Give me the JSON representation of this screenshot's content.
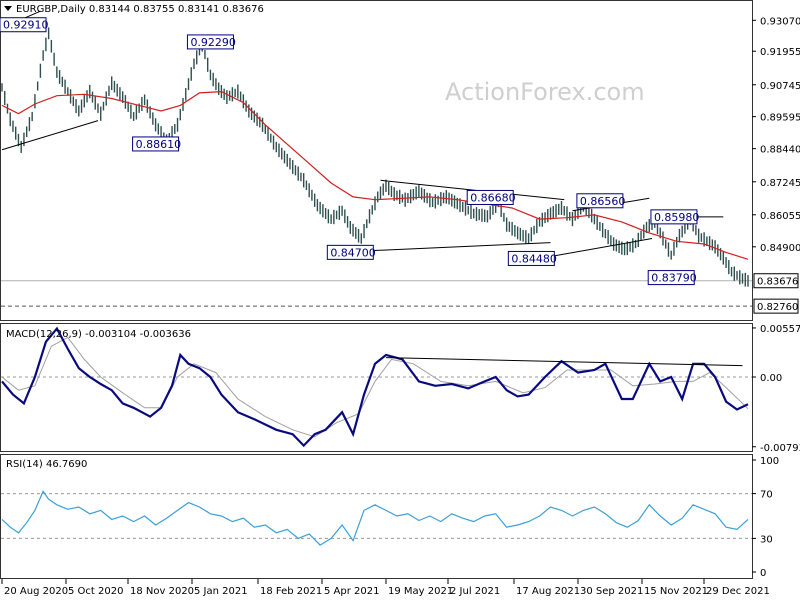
{
  "watermark": "ActionForex.com",
  "chart_data": [
    {
      "type": "candlestick",
      "header": "EURGBP,Daily  0.83144 0.83755 0.83141 0.83676",
      "ylim": [
        0.8226,
        0.9373
      ],
      "price_ticks": [
        "0.93070",
        "0.91955",
        "0.90745",
        "0.89595",
        "0.88440",
        "0.87245",
        "0.86055",
        "0.84900",
        "0.83676",
        "0.82760"
      ],
      "price_tick_values": [
        0.9307,
        0.91955,
        0.90745,
        0.89595,
        0.8844,
        0.87245,
        0.86055,
        0.849,
        0.83676,
        0.8276
      ],
      "current_price_label": "0.83676",
      "current_price": 0.83676,
      "dashed_level_label": "0.82760",
      "dashed_level": 0.8276,
      "x_labels": [
        "20 Aug 2020",
        "5 Oct 2020",
        "18 Nov 2020",
        "5 Jan 2021",
        "18 Feb 2021",
        "5 Apr 2021",
        "19 May 2021",
        "2 Jul 2021",
        "17 Aug 2021",
        "30 Sep 2021",
        "15 Nov 2021",
        "29 Dec 2021"
      ],
      "close_path": [
        [
          0,
          0.9065
        ],
        [
          3,
          0.895
        ],
        [
          7,
          0.885
        ],
        [
          11,
          0.896
        ],
        [
          15,
          0.918
        ],
        [
          17,
          0.926
        ],
        [
          20,
          0.912
        ],
        [
          24,
          0.905
        ],
        [
          28,
          0.898
        ],
        [
          32,
          0.905
        ],
        [
          36,
          0.897
        ],
        [
          40,
          0.908
        ],
        [
          44,
          0.903
        ],
        [
          48,
          0.896
        ],
        [
          52,
          0.902
        ],
        [
          56,
          0.893
        ],
        [
          60,
          0.887
        ],
        [
          64,
          0.893
        ],
        [
          67,
          0.904
        ],
        [
          70,
          0.915
        ],
        [
          73,
          0.922
        ],
        [
          76,
          0.911
        ],
        [
          79,
          0.906
        ],
        [
          82,
          0.903
        ],
        [
          86,
          0.905
        ],
        [
          90,
          0.898
        ],
        [
          95,
          0.893
        ],
        [
          100,
          0.885
        ],
        [
          105,
          0.879
        ],
        [
          110,
          0.873
        ],
        [
          115,
          0.864
        ],
        [
          120,
          0.859
        ],
        [
          124,
          0.862
        ],
        [
          127,
          0.856
        ],
        [
          131,
          0.852
        ],
        [
          134,
          0.86
        ],
        [
          137,
          0.867
        ],
        [
          140,
          0.871
        ],
        [
          143,
          0.868
        ],
        [
          147,
          0.866
        ],
        [
          152,
          0.869
        ],
        [
          157,
          0.865
        ],
        [
          162,
          0.867
        ],
        [
          167,
          0.864
        ],
        [
          172,
          0.861
        ],
        [
          177,
          0.86
        ],
        [
          181,
          0.865
        ],
        [
          184,
          0.857
        ],
        [
          188,
          0.854
        ],
        [
          192,
          0.852
        ],
        [
          196,
          0.858
        ],
        [
          200,
          0.861
        ],
        [
          204,
          0.863
        ],
        [
          208,
          0.859
        ],
        [
          212,
          0.864
        ],
        [
          216,
          0.859
        ],
        [
          219,
          0.855
        ],
        [
          223,
          0.85
        ],
        [
          227,
          0.848
        ],
        [
          231,
          0.85
        ],
        [
          235,
          0.856
        ],
        [
          238,
          0.858
        ],
        [
          241,
          0.852
        ],
        [
          244,
          0.846
        ],
        [
          247,
          0.853
        ],
        [
          251,
          0.859
        ],
        [
          254,
          0.853
        ],
        [
          257,
          0.851
        ],
        [
          260,
          0.849
        ],
        [
          263,
          0.845
        ],
        [
          266,
          0.84
        ],
        [
          269,
          0.838
        ],
        [
          272,
          0.8367
        ]
      ],
      "ma_path": [
        [
          0,
          0.9
        ],
        [
          6,
          0.897
        ],
        [
          12,
          0.9005
        ],
        [
          20,
          0.9035
        ],
        [
          30,
          0.904
        ],
        [
          40,
          0.9025
        ],
        [
          50,
          0.9
        ],
        [
          58,
          0.898
        ],
        [
          65,
          0.9
        ],
        [
          72,
          0.9045
        ],
        [
          80,
          0.905
        ],
        [
          88,
          0.901
        ],
        [
          96,
          0.893
        ],
        [
          104,
          0.886
        ],
        [
          112,
          0.879
        ],
        [
          120,
          0.872
        ],
        [
          128,
          0.867
        ],
        [
          136,
          0.866
        ],
        [
          146,
          0.8665
        ],
        [
          156,
          0.867
        ],
        [
          166,
          0.866
        ],
        [
          176,
          0.8645
        ],
        [
          186,
          0.863
        ],
        [
          196,
          0.859
        ],
        [
          206,
          0.8595
        ],
        [
          216,
          0.8605
        ],
        [
          226,
          0.858
        ],
        [
          236,
          0.854
        ],
        [
          246,
          0.851
        ],
        [
          256,
          0.85
        ],
        [
          264,
          0.847
        ],
        [
          272,
          0.8445
        ]
      ],
      "annotations": [
        {
          "label": "0.92910",
          "price": 0.9291,
          "idx": 11
        },
        {
          "label": "0.92290",
          "price": 0.9229,
          "idx": 76
        },
        {
          "label": "0.88610",
          "price": 0.8861,
          "idx": 56
        },
        {
          "label": "0.84700",
          "price": 0.847,
          "idx": 127
        },
        {
          "label": "0.86680",
          "price": 0.8668,
          "idx": 178
        },
        {
          "label": "0.84480",
          "price": 0.8448,
          "idx": 193
        },
        {
          "label": "0.86560",
          "price": 0.8656,
          "idx": 218
        },
        {
          "label": "0.83790",
          "price": 0.8379,
          "idx": 244
        },
        {
          "label": "0.85980",
          "price": 0.8598,
          "idx": 245
        }
      ],
      "trendlines": [
        [
          [
            0,
            0.928
          ],
          [
            14,
            0.934
          ]
        ],
        [
          [
            0,
            0.884
          ],
          [
            35,
            0.8945
          ]
        ],
        [
          [
            132,
            0.8475
          ],
          [
            200,
            0.8505
          ]
        ],
        [
          [
            138,
            0.873
          ],
          [
            205,
            0.866
          ]
        ],
        [
          [
            200,
            0.8455
          ],
          [
            237,
            0.852
          ]
        ],
        [
          [
            208,
            0.862
          ],
          [
            236,
            0.8665
          ]
        ],
        [
          [
            249,
            0.8598
          ],
          [
            263,
            0.8598
          ]
        ]
      ]
    },
    {
      "type": "line",
      "header": "MACD(12,26,9) -0.003104 -0.003636",
      "ylim": [
        -0.0083,
        0.0058
      ],
      "ticks": [
        "0.005579",
        "0.00",
        "-0.007931"
      ],
      "tick_values": [
        0.005579,
        0.0,
        -0.007931
      ],
      "macd_path": [
        [
          0,
          -0.0005
        ],
        [
          4,
          -0.002
        ],
        [
          8,
          -0.003
        ],
        [
          12,
          0.0
        ],
        [
          16,
          0.004
        ],
        [
          20,
          0.0055
        ],
        [
          24,
          0.0032
        ],
        [
          28,
          0.001
        ],
        [
          32,
          0.0
        ],
        [
          36,
          -0.0008
        ],
        [
          40,
          -0.0015
        ],
        [
          44,
          -0.003
        ],
        [
          48,
          -0.0035
        ],
        [
          54,
          -0.0045
        ],
        [
          58,
          -0.0035
        ],
        [
          62,
          -0.001
        ],
        [
          65,
          0.0025
        ],
        [
          68,
          0.0015
        ],
        [
          72,
          0.001
        ],
        [
          76,
          0.0
        ],
        [
          80,
          -0.002
        ],
        [
          86,
          -0.004
        ],
        [
          92,
          -0.0048
        ],
        [
          100,
          -0.006
        ],
        [
          106,
          -0.0065
        ],
        [
          110,
          -0.0078
        ],
        [
          114,
          -0.0065
        ],
        [
          118,
          -0.006
        ],
        [
          124,
          -0.004
        ],
        [
          128,
          -0.0065
        ],
        [
          132,
          -0.002
        ],
        [
          136,
          0.0015
        ],
        [
          140,
          0.0025
        ],
        [
          146,
          0.002
        ],
        [
          152,
          -0.0005
        ],
        [
          158,
          -0.001
        ],
        [
          164,
          -0.0008
        ],
        [
          170,
          -0.0013
        ],
        [
          176,
          -0.0005
        ],
        [
          180,
          0.0
        ],
        [
          184,
          -0.0015
        ],
        [
          188,
          -0.0022
        ],
        [
          192,
          -0.002
        ],
        [
          198,
          0.0
        ],
        [
          204,
          0.0018
        ],
        [
          210,
          0.0005
        ],
        [
          216,
          0.0008
        ],
        [
          220,
          0.0015
        ],
        [
          226,
          -0.0025
        ],
        [
          230,
          -0.0025
        ],
        [
          236,
          0.0015
        ],
        [
          240,
          -0.0005
        ],
        [
          244,
          0.0
        ],
        [
          248,
          -0.0025
        ],
        [
          252,
          0.0015
        ],
        [
          256,
          0.0015
        ],
        [
          260,
          0.0
        ],
        [
          264,
          -0.0028
        ],
        [
          268,
          -0.0037
        ],
        [
          272,
          -0.0031
        ]
      ],
      "signal_path": [
        [
          0,
          0.0
        ],
        [
          6,
          -0.0015
        ],
        [
          12,
          -0.001
        ],
        [
          18,
          0.0035
        ],
        [
          24,
          0.0045
        ],
        [
          30,
          0.002
        ],
        [
          36,
          0.0
        ],
        [
          44,
          -0.0018
        ],
        [
          52,
          -0.0035
        ],
        [
          58,
          -0.0035
        ],
        [
          64,
          0.0
        ],
        [
          70,
          0.0015
        ],
        [
          78,
          0.0005
        ],
        [
          86,
          -0.0025
        ],
        [
          96,
          -0.0045
        ],
        [
          106,
          -0.006
        ],
        [
          114,
          -0.0068
        ],
        [
          122,
          -0.0052
        ],
        [
          130,
          -0.0042
        ],
        [
          136,
          -0.0005
        ],
        [
          142,
          0.002
        ],
        [
          150,
          0.0015
        ],
        [
          160,
          -0.0005
        ],
        [
          170,
          -0.001
        ],
        [
          180,
          -0.0005
        ],
        [
          190,
          -0.0018
        ],
        [
          198,
          -0.0012
        ],
        [
          206,
          0.0008
        ],
        [
          214,
          0.0008
        ],
        [
          222,
          0.0008
        ],
        [
          230,
          -0.001
        ],
        [
          238,
          -0.0008
        ],
        [
          246,
          -0.0005
        ],
        [
          252,
          -0.0005
        ],
        [
          258,
          0.0005
        ],
        [
          264,
          -0.0012
        ],
        [
          272,
          -0.0036
        ]
      ],
      "trendline": [
        [
          140,
          0.0022
        ],
        [
          270,
          0.0013
        ]
      ]
    },
    {
      "type": "line",
      "header": "RSI(14) 46.7690",
      "ylim": [
        0,
        100
      ],
      "ticks": [
        "100",
        "70",
        "30",
        "0"
      ],
      "tick_values": [
        100,
        70,
        30,
        0
      ],
      "rsi_path": [
        [
          0,
          47
        ],
        [
          3,
          40
        ],
        [
          6,
          35
        ],
        [
          9,
          44
        ],
        [
          12,
          55
        ],
        [
          15,
          72
        ],
        [
          17,
          65
        ],
        [
          20,
          60
        ],
        [
          24,
          56
        ],
        [
          28,
          58
        ],
        [
          32,
          52
        ],
        [
          36,
          55
        ],
        [
          40,
          47
        ],
        [
          44,
          50
        ],
        [
          48,
          45
        ],
        [
          52,
          50
        ],
        [
          56,
          42
        ],
        [
          60,
          48
        ],
        [
          64,
          55
        ],
        [
          68,
          62
        ],
        [
          72,
          58
        ],
        [
          76,
          52
        ],
        [
          80,
          50
        ],
        [
          84,
          45
        ],
        [
          88,
          48
        ],
        [
          92,
          40
        ],
        [
          96,
          42
        ],
        [
          100,
          35
        ],
        [
          104,
          38
        ],
        [
          108,
          30
        ],
        [
          112,
          34
        ],
        [
          116,
          24
        ],
        [
          120,
          30
        ],
        [
          124,
          42
        ],
        [
          128,
          28
        ],
        [
          132,
          55
        ],
        [
          136,
          60
        ],
        [
          140,
          55
        ],
        [
          144,
          50
        ],
        [
          148,
          52
        ],
        [
          152,
          46
        ],
        [
          156,
          50
        ],
        [
          160,
          45
        ],
        [
          164,
          52
        ],
        [
          168,
          48
        ],
        [
          172,
          45
        ],
        [
          176,
          50
        ],
        [
          180,
          52
        ],
        [
          184,
          40
        ],
        [
          188,
          42
        ],
        [
          192,
          45
        ],
        [
          196,
          50
        ],
        [
          200,
          58
        ],
        [
          204,
          55
        ],
        [
          208,
          50
        ],
        [
          212,
          55
        ],
        [
          216,
          58
        ],
        [
          220,
          52
        ],
        [
          224,
          44
        ],
        [
          228,
          40
        ],
        [
          232,
          46
        ],
        [
          236,
          60
        ],
        [
          240,
          50
        ],
        [
          244,
          42
        ],
        [
          248,
          48
        ],
        [
          252,
          60
        ],
        [
          256,
          56
        ],
        [
          260,
          52
        ],
        [
          264,
          40
        ],
        [
          268,
          38
        ],
        [
          272,
          47
        ]
      ]
    }
  ]
}
